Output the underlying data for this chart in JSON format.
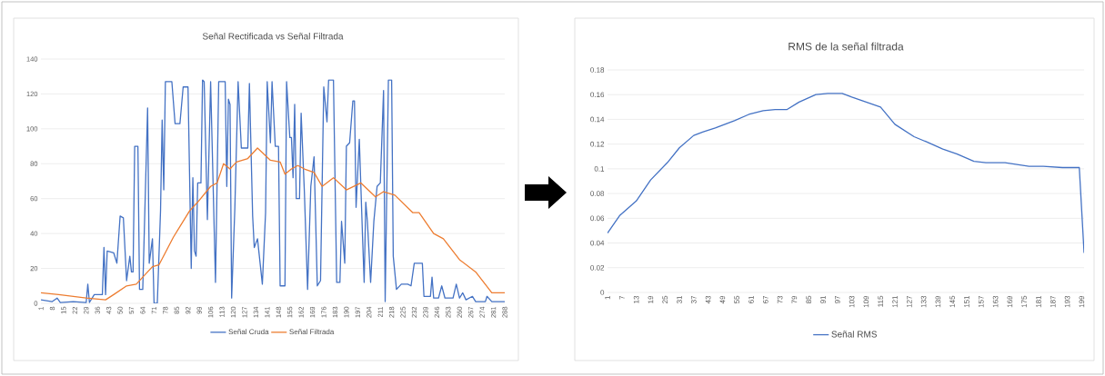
{
  "chart_data": [
    {
      "type": "line",
      "title": "Señal Rectificada vs Señal Filtrada",
      "xlim": [
        1,
        288
      ],
      "xticks": [
        1,
        8,
        15,
        22,
        29,
        36,
        43,
        50,
        57,
        64,
        71,
        78,
        85,
        92,
        99,
        106,
        113,
        120,
        127,
        134,
        141,
        148,
        155,
        162,
        169,
        176,
        183,
        190,
        197,
        204,
        211,
        218,
        225,
        232,
        239,
        246,
        253,
        260,
        267,
        274,
        281,
        288
      ],
      "ylim": [
        0,
        140
      ],
      "yticks": [
        0,
        20,
        40,
        60,
        80,
        100,
        120,
        140
      ],
      "grid": "y",
      "legend": "bottom",
      "series": [
        {
          "name": "Señal Cruda",
          "color": "#4472c4",
          "x": [
            1,
            8,
            11,
            13,
            21,
            29,
            30,
            31,
            34,
            39,
            40,
            41,
            42,
            46,
            48,
            50,
            52,
            54,
            56,
            57,
            58,
            59,
            61,
            62,
            64,
            67,
            68,
            70,
            71,
            73,
            75,
            76,
            77,
            78,
            82,
            84,
            87,
            89,
            92,
            94,
            95,
            96,
            97,
            98,
            100,
            101,
            102,
            104,
            106,
            109,
            111,
            115,
            116,
            117,
            118,
            119,
            121,
            123,
            125,
            129,
            130,
            132,
            133,
            135,
            138,
            140,
            141,
            143,
            144,
            146,
            148,
            149,
            152,
            153,
            155,
            156,
            157,
            158,
            159,
            161,
            162,
            164,
            166,
            168,
            170,
            172,
            174,
            176,
            178,
            179,
            182,
            184,
            186,
            187,
            189,
            190,
            192,
            194,
            195,
            196,
            198,
            200,
            201,
            202,
            203,
            205,
            207,
            209,
            211,
            213,
            214,
            216,
            218,
            219,
            221,
            224,
            228,
            230,
            232,
            237,
            238,
            242,
            243,
            244,
            247,
            249,
            251,
            256,
            258,
            260,
            262,
            264,
            268,
            270,
            276,
            277,
            280,
            288
          ],
          "values": [
            2,
            1,
            3,
            0.5,
            1,
            0.5,
            11,
            0.5,
            5,
            5,
            32,
            5,
            30,
            29,
            23,
            50,
            49,
            13,
            27,
            18,
            18,
            90,
            90,
            8,
            8,
            112,
            23,
            37,
            0,
            0,
            53,
            105,
            65,
            127,
            127,
            103,
            103,
            124,
            124,
            20,
            72,
            30,
            27,
            69,
            69,
            128,
            127,
            48,
            127,
            12,
            127,
            127,
            67,
            117,
            114,
            3,
            55,
            127,
            89,
            89,
            126,
            50,
            32,
            37,
            11,
            52,
            127,
            92,
            127,
            90,
            90,
            10,
            10,
            127,
            95,
            95,
            72,
            114,
            60,
            60,
            109,
            64,
            8,
            67,
            84,
            10,
            13,
            124,
            104,
            128,
            128,
            12,
            12,
            47,
            23,
            90,
            92,
            116,
            116,
            55,
            94,
            38,
            12,
            58,
            47,
            12,
            47,
            67,
            69,
            122,
            1,
            128,
            128,
            27,
            8,
            11,
            11,
            10,
            23,
            23,
            4,
            4,
            15,
            3,
            3,
            10,
            3,
            3,
            11,
            3,
            6,
            2,
            4,
            1,
            1,
            4,
            1,
            1
          ]
        },
        {
          "name": "Señal Filtrada",
          "color": "#ed7d31",
          "x": [
            1,
            12,
            29,
            41,
            46,
            54,
            60,
            64,
            70,
            74,
            83,
            93,
            98,
            106,
            110,
            114,
            118,
            122,
            129,
            135,
            143,
            149,
            152,
            156,
            160,
            164,
            170,
            175,
            182,
            190,
            199,
            208,
            213,
            220,
            231,
            235,
            244,
            250,
            260,
            270,
            280,
            288
          ],
          "values": [
            6,
            5,
            3,
            2,
            5,
            10,
            11,
            15,
            21,
            22,
            38,
            53,
            58,
            67,
            69,
            80,
            77,
            81,
            83,
            89,
            82,
            81,
            74,
            77,
            79,
            77,
            75,
            67,
            72,
            65,
            69,
            61,
            64,
            62,
            52,
            52,
            40,
            37,
            25,
            18,
            6,
            6
          ]
        }
      ]
    },
    {
      "type": "line",
      "title": "RMS de la señal filtrada",
      "xlim": [
        1,
        200
      ],
      "xticks": [
        1,
        7,
        13,
        19,
        25,
        31,
        37,
        43,
        49,
        55,
        61,
        67,
        73,
        79,
        85,
        91,
        97,
        103,
        109,
        115,
        121,
        127,
        133,
        139,
        145,
        151,
        157,
        163,
        169,
        175,
        181,
        187,
        193,
        199
      ],
      "ylim": [
        0,
        0.18
      ],
      "yticks": [
        0,
        0.02,
        0.04,
        0.06,
        0.08,
        0.1,
        0.12,
        0.14,
        0.16,
        0.18
      ],
      "grid": "y",
      "legend": "bottom",
      "series": [
        {
          "name": "Señal RMS",
          "color": "#4472c4",
          "x": [
            1,
            6,
            13,
            19,
            26,
            31,
            37,
            41,
            46,
            54,
            60,
            66,
            71,
            76,
            81,
            88,
            93,
            99,
            103,
            106,
            115,
            121,
            129,
            134,
            141,
            147,
            154,
            159,
            167,
            177,
            183,
            191,
            198,
            200
          ],
          "values": [
            0.048,
            0.062,
            0.074,
            0.091,
            0.105,
            0.117,
            0.127,
            0.13,
            0.133,
            0.139,
            0.144,
            0.147,
            0.148,
            0.148,
            0.154,
            0.16,
            0.161,
            0.161,
            0.158,
            0.156,
            0.15,
            0.136,
            0.126,
            0.122,
            0.116,
            0.112,
            0.106,
            0.105,
            0.105,
            0.102,
            0.102,
            0.101,
            0.101,
            0.032
          ]
        }
      ]
    }
  ]
}
